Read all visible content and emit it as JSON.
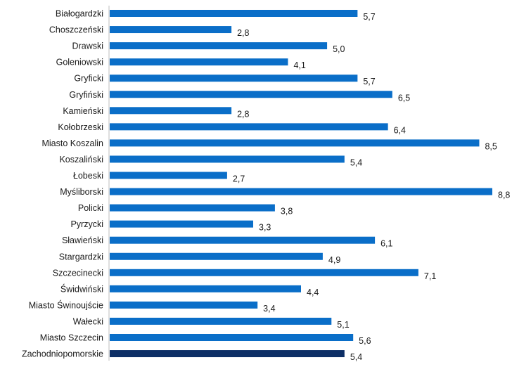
{
  "chart_data": {
    "type": "bar",
    "orientation": "horizontal",
    "categories": [
      "Białogardzki",
      "Choszczeński",
      "Drawski",
      "Goleniowski",
      "Gryficki",
      "Gryfiński",
      "Kamieński",
      "Kołobrzeski",
      "Miasto Koszalin",
      "Koszaliński",
      "Łobeski",
      "Myśliborski",
      "Policki",
      "Pyrzycki",
      "Sławieński",
      "Stargardzki",
      "Szczecinecki",
      "Świdwiński",
      "Miasto Świnoujście",
      "Wałecki",
      "Miasto Szczecin",
      "Zachodniopomorskie"
    ],
    "values": [
      5.7,
      2.8,
      5.0,
      4.1,
      5.7,
      6.5,
      2.8,
      6.4,
      8.5,
      5.4,
      2.7,
      8.8,
      3.8,
      3.3,
      6.1,
      4.9,
      7.1,
      4.4,
      3.4,
      5.1,
      5.6,
      5.4
    ],
    "value_labels": [
      "5,7",
      "2,8",
      "5,0",
      "4,1",
      "5,7",
      "6,5",
      "2,8",
      "6,4",
      "8,5",
      "5,4",
      "2,7",
      "8,8",
      "3,8",
      "3,3",
      "6,1",
      "4,9",
      "7,1",
      "4,4",
      "3,4",
      "5,1",
      "5,6",
      "5,4"
    ],
    "highlight_category": "Zachodniopomorskie",
    "colors": {
      "bar": "#0a6ec8",
      "highlight": "#0d2f66"
    },
    "xlim": [
      0,
      8.8
    ],
    "grid": false,
    "title": "",
    "xlabel": "",
    "ylabel": ""
  }
}
